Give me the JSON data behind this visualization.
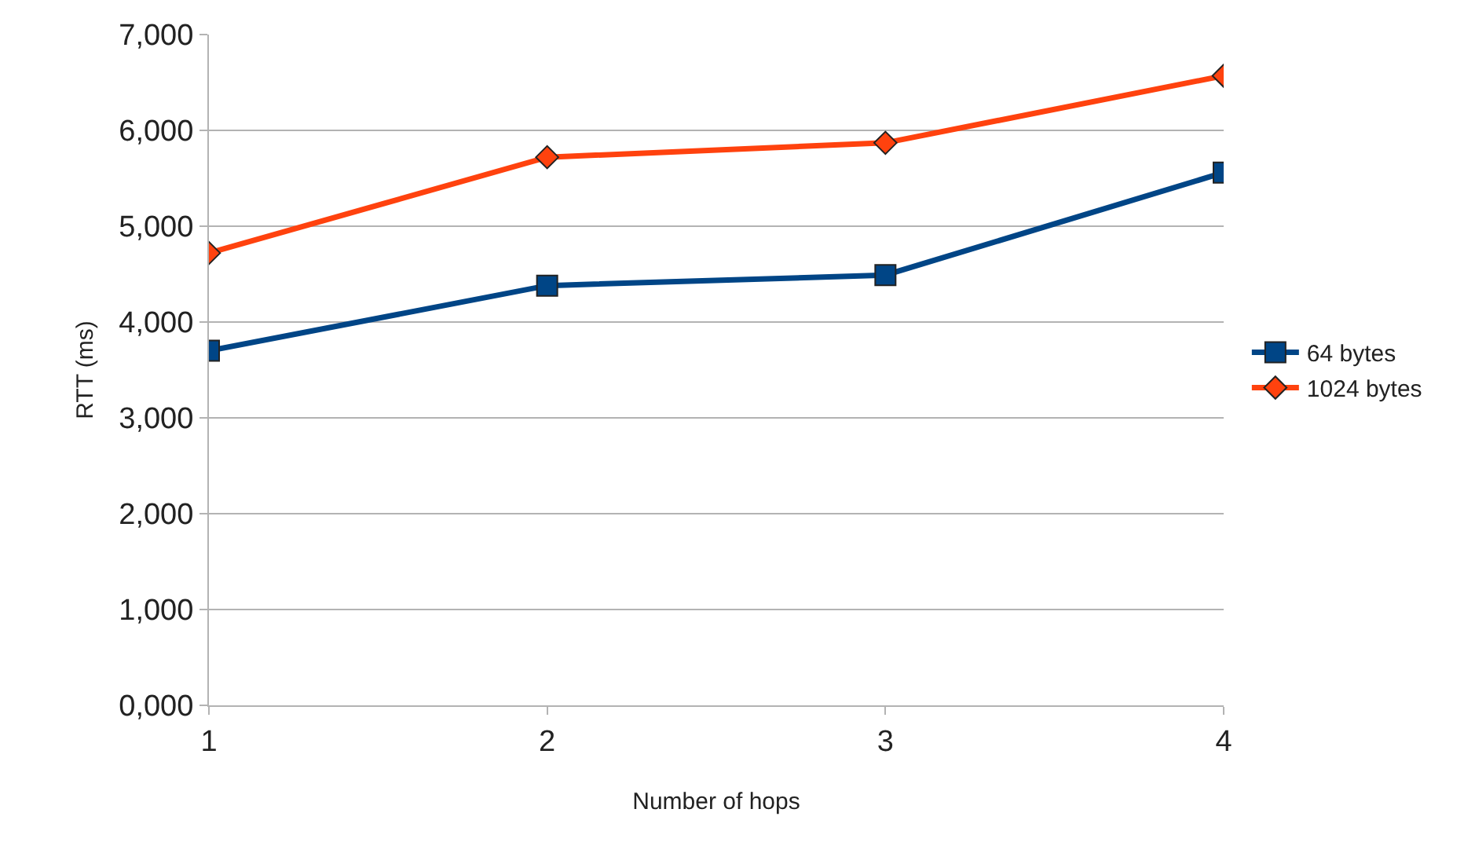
{
  "chart_data": {
    "type": "line",
    "xlabel": "Number of hops",
    "ylabel": "RTT (ms)",
    "x": [
      1,
      2,
      3,
      4
    ],
    "xlim": [
      1,
      4
    ],
    "xticks": [
      1,
      2,
      3,
      4
    ],
    "ylim": [
      0,
      7000
    ],
    "yticks": [
      {
        "value": 0,
        "label": "0,000"
      },
      {
        "value": 1000,
        "label": "1,000"
      },
      {
        "value": 2000,
        "label": "2,000"
      },
      {
        "value": 3000,
        "label": "3,000"
      },
      {
        "value": 4000,
        "label": "4,000"
      },
      {
        "value": 5000,
        "label": "5,000"
      },
      {
        "value": 6000,
        "label": "6,000"
      },
      {
        "value": 7000,
        "label": "7,000"
      }
    ],
    "grid": "y",
    "legend": "right",
    "series": [
      {
        "name": "64 bytes",
        "color": "#004586",
        "marker": "square",
        "values": [
          3700,
          4380,
          4490,
          5560
        ]
      },
      {
        "name": "1024 bytes",
        "color": "#ff420e",
        "marker": "diamond",
        "values": [
          4720,
          5720,
          5870,
          6570
        ]
      }
    ]
  }
}
